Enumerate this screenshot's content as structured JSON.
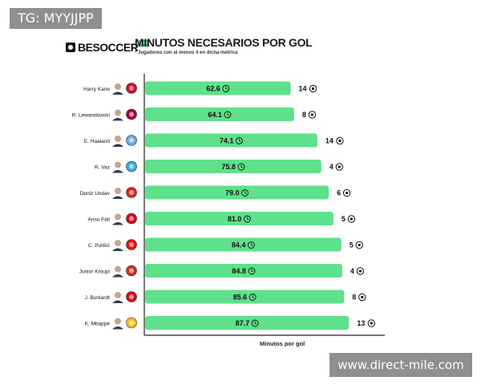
{
  "watermarks": {
    "top": "TG: MYYJJPP",
    "bottom": "www.direct-mile.com"
  },
  "brand": {
    "name": "BESOCCER",
    "tag": "Pro"
  },
  "colors": {
    "bar": "#5fe08a",
    "axis": "#222222",
    "text": "#111111"
  },
  "chart_data": {
    "type": "bar",
    "orientation": "horizontal",
    "title": "MINUTOS NECESARIOS POR GOL",
    "subtitle": "* Jugadores con al menos 4 en dicha métrica",
    "xlabel": "Minutos por gol",
    "ylabel": "",
    "xlim": [
      0,
      100
    ],
    "grid": false,
    "categories": [
      "Harry Kane",
      "R. Lewandowski",
      "E. Haaland",
      "R. Vaz",
      "Deniz Undav",
      "Ansu Fati",
      "C. Pulišić",
      "Junior Kroupi",
      "J. Burkardt",
      "K. Mbappé"
    ],
    "values": [
      62.6,
      64.1,
      74.1,
      75.8,
      79.0,
      81.0,
      84.4,
      84.8,
      85.6,
      87.7
    ],
    "value_labels": [
      "62.6",
      "64.1",
      "74.1",
      "75.8",
      "79.0",
      "81.0",
      "84.4",
      "84.8",
      "85.6",
      "87.7"
    ],
    "goals": [
      "14",
      "8",
      "14",
      "4",
      "6",
      "5",
      "5",
      "4",
      "8",
      "13"
    ],
    "club_badges": [
      "bayern-badge-icon",
      "barcelona-badge-icon",
      "man-city-badge-icon",
      "marseille-badge-icon",
      "stuttgart-badge-icon",
      "monaco-badge-icon",
      "milan-badge-icon",
      "bournemouth-badge-icon",
      "frankfurt-badge-icon",
      "real-madrid-badge-icon"
    ],
    "badge_colors": [
      "#dc052d",
      "#a50044",
      "#6cabdd",
      "#2faee0",
      "#e32219",
      "#e2001a",
      "#fb090b",
      "#da291c",
      "#e1000f",
      "#febe10"
    ]
  }
}
